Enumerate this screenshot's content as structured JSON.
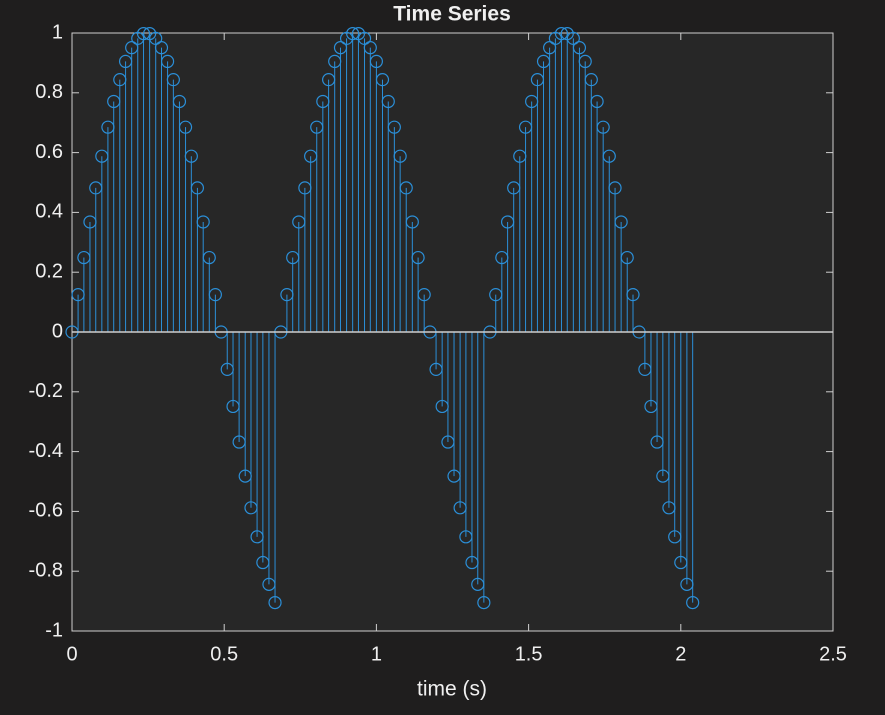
{
  "chart_data": {
    "type": "stem",
    "title": "Time Series",
    "xlabel": "time (s)",
    "xlim": [
      0,
      2.5
    ],
    "xticks": [
      0,
      0.5,
      1,
      1.5,
      2,
      2.5
    ],
    "ylim": [
      -1,
      1
    ],
    "yticks": [
      -1,
      -0.8,
      -0.6,
      -0.4,
      -0.2,
      0,
      0.2,
      0.4,
      0.6,
      0.8,
      1
    ],
    "baseline": 0,
    "grid": false,
    "series": [
      {
        "color": "#2b8fd8",
        "x": [
          0,
          0.02,
          0.039,
          0.059,
          0.078,
          0.098,
          0.118,
          0.137,
          0.157,
          0.176,
          0.196,
          0.216,
          0.235,
          0.255,
          0.275,
          0.294,
          0.314,
          0.333,
          0.353,
          0.373,
          0.392,
          0.412,
          0.431,
          0.451,
          0.471,
          0.49,
          0.51,
          0.529,
          0.549,
          0.569,
          0.588,
          0.608,
          0.627,
          0.647,
          0.667,
          0.686,
          0.706,
          0.725,
          0.745,
          0.765,
          0.784,
          0.804,
          0.824,
          0.843,
          0.863,
          0.882,
          0.902,
          0.922,
          0.941,
          0.961,
          0.98,
          1.0,
          1.02,
          1.039,
          1.059,
          1.078,
          1.098,
          1.118,
          1.137,
          1.157,
          1.176,
          1.196,
          1.216,
          1.235,
          1.255,
          1.275,
          1.294,
          1.314,
          1.333,
          1.353,
          1.373,
          1.392,
          1.412,
          1.431,
          1.451,
          1.471,
          1.49,
          1.51,
          1.529,
          1.549,
          1.569,
          1.588,
          1.608,
          1.627,
          1.647,
          1.667,
          1.686,
          1.706,
          1.725,
          1.745,
          1.765,
          1.784,
          1.804,
          1.824,
          1.843,
          1.863,
          1.882,
          1.902,
          1.922,
          1.941,
          1.961,
          1.98,
          2.0,
          2.02,
          2.039
        ],
        "values": [
          0,
          0.125,
          0.249,
          0.368,
          0.482,
          0.588,
          0.685,
          0.771,
          0.844,
          0.905,
          0.951,
          0.982,
          0.998,
          0.998,
          0.982,
          0.951,
          0.905,
          0.844,
          0.771,
          0.685,
          0.588,
          0.482,
          0.368,
          0.249,
          0.125,
          0,
          -0.125,
          -0.249,
          -0.368,
          -0.482,
          -0.588,
          -0.685,
          -0.771,
          -0.844,
          -0.905,
          0,
          0.125,
          0.249,
          0.368,
          0.482,
          0.588,
          0.685,
          0.771,
          0.844,
          0.905,
          0.951,
          0.982,
          0.998,
          0.998,
          0.982,
          0.951,
          0.905,
          0.844,
          0.771,
          0.685,
          0.588,
          0.482,
          0.368,
          0.249,
          0.125,
          0,
          -0.125,
          -0.249,
          -0.368,
          -0.482,
          -0.588,
          -0.685,
          -0.771,
          -0.844,
          -0.905,
          0,
          0.125,
          0.249,
          0.368,
          0.482,
          0.588,
          0.685,
          0.771,
          0.844,
          0.905,
          0.951,
          0.982,
          0.998,
          0.998,
          0.982,
          0.951,
          0.905,
          0.844,
          0.771,
          0.685,
          0.588,
          0.482,
          0.368,
          0.249,
          0.125,
          0,
          -0.125,
          -0.249,
          -0.368,
          -0.482,
          -0.588,
          -0.685,
          -0.771,
          -0.844,
          -0.905
        ]
      }
    ]
  }
}
